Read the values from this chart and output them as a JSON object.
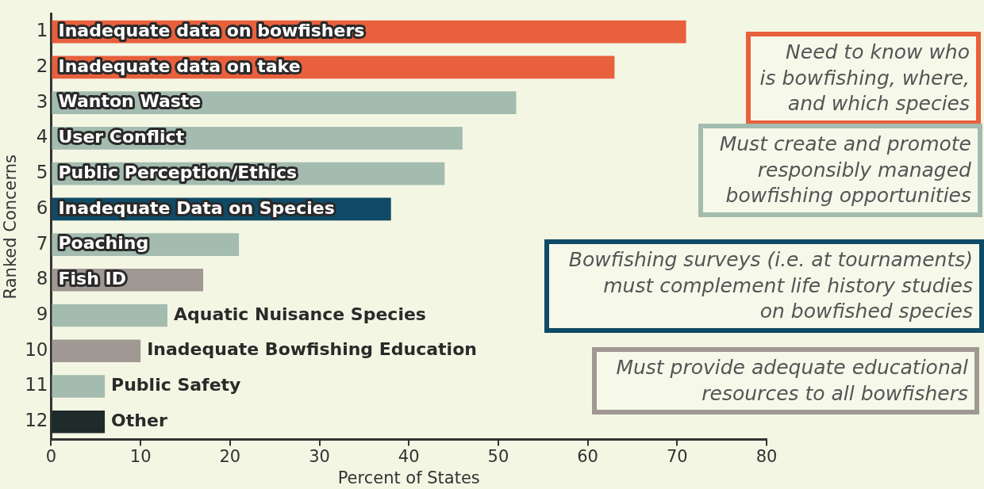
{
  "chart_data": {
    "type": "bar",
    "orientation": "horizontal",
    "xlabel": "Percent of States",
    "ylabel": "Ranked Concerns",
    "categories": [
      "1",
      "2",
      "3",
      "4",
      "5",
      "6",
      "7",
      "8",
      "9",
      "10",
      "11",
      "12"
    ],
    "values": [
      71,
      63,
      52,
      46,
      44,
      38,
      21,
      17,
      13,
      10,
      6,
      6
    ],
    "colors": [
      "#e8603c",
      "#e8603c",
      "#a3bcaf",
      "#a3bcaf",
      "#a3bcaf",
      "#0f4a66",
      "#a3bcaf",
      "#a09893",
      "#a3bcaf",
      "#a09893",
      "#a3bcaf",
      "#1f2a2a"
    ],
    "xlim": [
      0,
      80
    ],
    "xticks": [
      0,
      10,
      20,
      30,
      40,
      50,
      60,
      70,
      80
    ],
    "grid": false,
    "legend": false,
    "value_labels": [
      "Inadequate data on bowfishers",
      "Inadequate data on take",
      "Wanton Waste",
      "User Conflict",
      "Public Perception/Ethics",
      "Inadequate Data on Species",
      "Poaching",
      "Fish ID",
      "Aquatic Nuisance Species",
      "Inadequate Bowfishing Education",
      "Public Safety",
      "Other"
    ],
    "annotations": [
      "Need to know who\nis bowfishing, where,\nand which species",
      "Must create and promote\nresponsibly managed\nbowfishing opportunities",
      "Bowfishing surveys (i.e. at tournaments)\nmust complement life history studies\non bowfished species",
      "Must provide adequate educational\nresources to all bowfishers"
    ]
  }
}
